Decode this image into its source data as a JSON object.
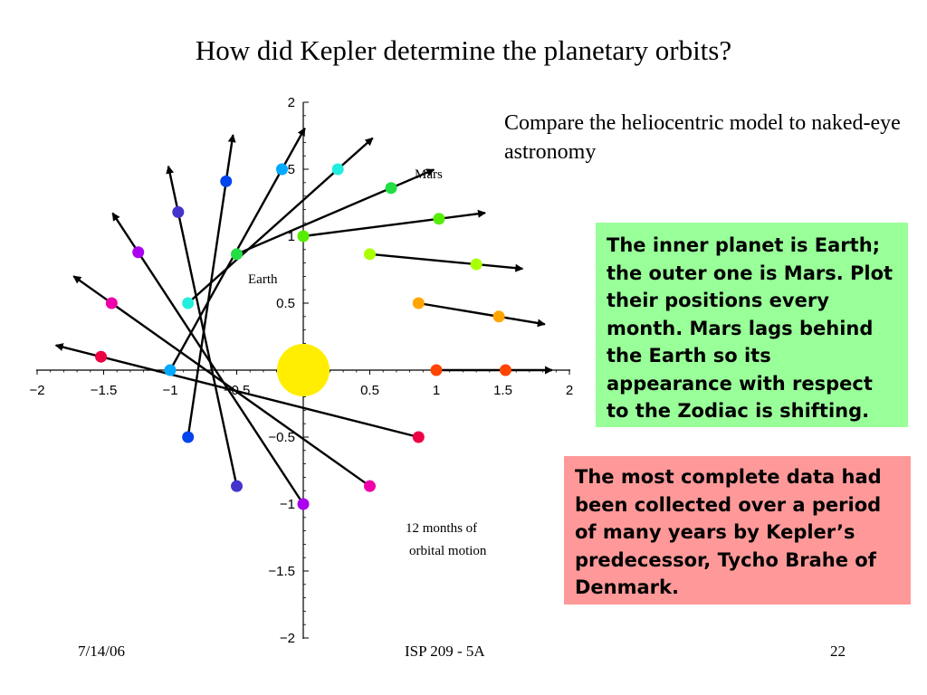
{
  "slide": {
    "title": "How did Kepler determine the planetary orbits?",
    "subtitle": "Compare the heliocentric model to naked-eye astronomy",
    "green_box": {
      "text": "The inner planet is Earth; the outer one is Mars. Plot their positions every month. Mars lags behind the Earth so its appearance with respect to the Zodiac is shifting.",
      "color": "#99ff99"
    },
    "pink_box": {
      "text": "The most complete data had been collected over a period of many years by Kepler’s predecessor, Tycho Brahe of Denmark.",
      "color": "#ff9999"
    },
    "footer": {
      "date": "7/14/06",
      "course": "ISP 209 - 5A",
      "page": "22"
    }
  },
  "diagram": {
    "labels": {
      "mars": "Mars",
      "earth": "Earth",
      "caption_line1": "12 months of",
      "caption_line2": "orbital motion"
    },
    "x_ticks": [
      "-2",
      "-1.5",
      "-1",
      "-0.5",
      "0.5",
      "1",
      "1.5",
      "2"
    ],
    "y_ticks": [
      "2",
      "1.5",
      "1",
      "0.5",
      "-0.5",
      "-1",
      "-1.5",
      "-2"
    ],
    "sun_color": "#ffee00",
    "months": [
      {
        "earth": [
          1,
          0
        ],
        "mars": [
          1.52,
          0
        ],
        "color": "#ff4500"
      },
      {
        "earth": [
          0.866,
          0.5
        ],
        "mars": [
          1.47,
          0.4
        ],
        "color": "#ffa500"
      },
      {
        "earth": [
          0.5,
          0.866
        ],
        "mars": [
          1.3,
          0.79
        ],
        "color": "#aaff00"
      },
      {
        "earth": [
          0,
          1
        ],
        "mars": [
          1.02,
          1.13
        ],
        "color": "#55ee00"
      },
      {
        "earth": [
          -0.5,
          0.866
        ],
        "mars": [
          0.66,
          1.36
        ],
        "color": "#22dd44"
      },
      {
        "earth": [
          -0.866,
          0.5
        ],
        "mars": [
          0.26,
          1.5
        ],
        "color": "#22eedd"
      },
      {
        "earth": [
          -1,
          0
        ],
        "mars": [
          -0.16,
          1.5
        ],
        "color": "#00aaff"
      },
      {
        "earth": [
          -0.866,
          -0.5
        ],
        "mars": [
          -0.58,
          1.41
        ],
        "color": "#0044ee"
      },
      {
        "earth": [
          -0.5,
          -0.866
        ],
        "mars": [
          -0.94,
          1.18
        ],
        "color": "#4433cc"
      },
      {
        "earth": [
          0,
          -1
        ],
        "mars": [
          -1.24,
          0.88
        ],
        "color": "#aa00ee"
      },
      {
        "earth": [
          0.5,
          -0.866
        ],
        "mars": [
          -1.44,
          0.5
        ],
        "color": "#ee00aa"
      },
      {
        "earth": [
          0.866,
          -0.5
        ],
        "mars": [
          -1.52,
          0.1
        ],
        "color": "#ee0044"
      }
    ]
  }
}
